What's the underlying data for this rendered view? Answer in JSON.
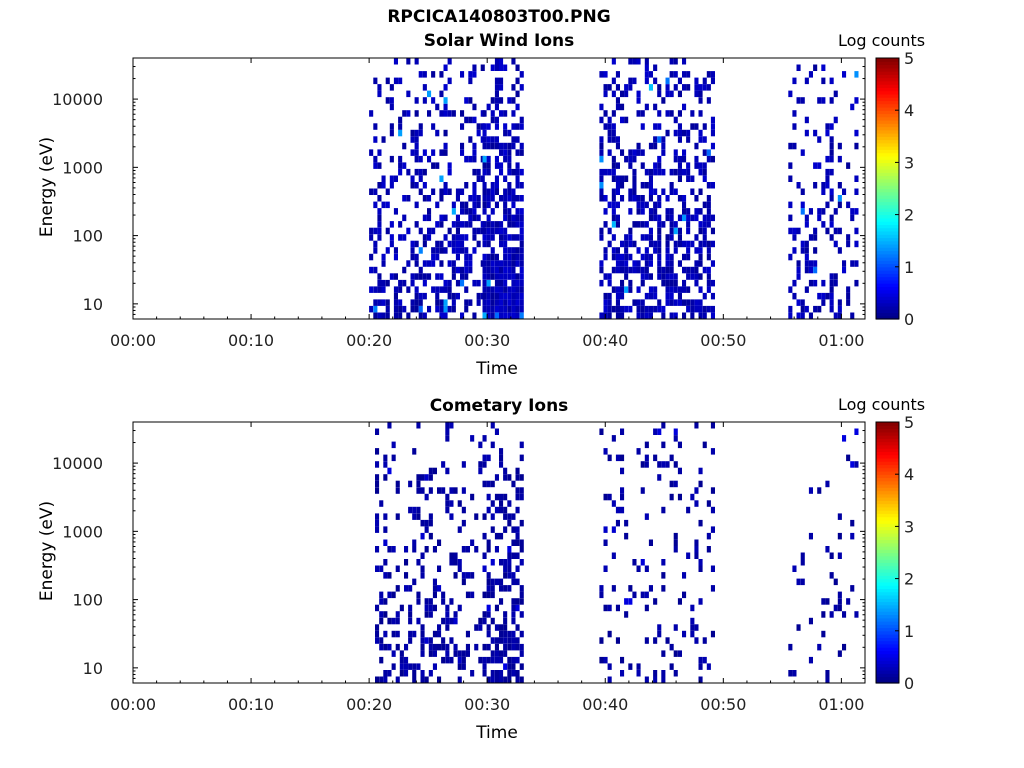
{
  "figure": {
    "title": "RPCICA140803T00.PNG"
  },
  "chart_data": [
    {
      "type": "heatmap",
      "title": "Solar Wind Ions",
      "xlabel": "Time",
      "ylabel": "Energy (eV)",
      "x_ticks": [
        "00:00",
        "00:10",
        "00:20",
        "00:30",
        "00:40",
        "00:50",
        "01:00"
      ],
      "x_range_minutes": [
        0,
        62
      ],
      "y_ticks": [
        "10",
        "100",
        "1000",
        "10000"
      ],
      "y_range": [
        6,
        40000
      ],
      "y_scale": "log",
      "colorbar": {
        "label": "Log counts",
        "ticks": [
          "0",
          "1",
          "2",
          "3",
          "4",
          "5"
        ],
        "range": [
          0,
          5
        ],
        "colormap": "jet"
      },
      "data_intervals_minutes": [
        [
          20.0,
          29.6
        ],
        [
          29.6,
          33.0
        ],
        [
          39.5,
          49.0
        ],
        [
          55.5,
          61.3
        ]
      ],
      "typical_level": 0.3,
      "peak_level": 1.6,
      "density": [
        0.45,
        0.9,
        0.55,
        0.3
      ]
    },
    {
      "type": "heatmap",
      "title": "Cometary Ions",
      "xlabel": "Time",
      "ylabel": "Energy (eV)",
      "x_ticks": [
        "00:00",
        "00:10",
        "00:20",
        "00:30",
        "00:40",
        "00:50",
        "01:00"
      ],
      "x_range_minutes": [
        0,
        62
      ],
      "y_ticks": [
        "10",
        "100",
        "1000",
        "10000"
      ],
      "y_range": [
        6,
        40000
      ],
      "y_scale": "log",
      "colorbar": {
        "label": "Log counts",
        "ticks": [
          "0",
          "1",
          "2",
          "3",
          "4",
          "5"
        ],
        "range": [
          0,
          5
        ],
        "colormap": "jet"
      },
      "data_intervals_minutes": [
        [
          20.5,
          29.6
        ],
        [
          29.6,
          33.0
        ],
        [
          39.5,
          49.0
        ],
        [
          55.5,
          61.3
        ]
      ],
      "typical_level": 0.2,
      "peak_level": 0.5,
      "density": [
        0.3,
        0.6,
        0.15,
        0.1
      ]
    }
  ]
}
